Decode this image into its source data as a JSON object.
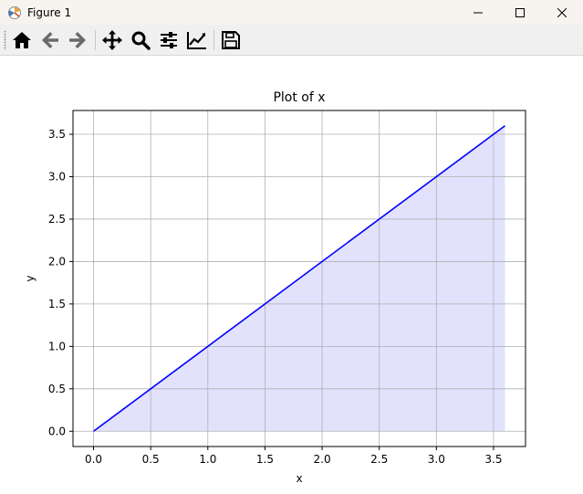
{
  "window": {
    "title": "Figure 1",
    "controls": [
      "minimize",
      "maximize",
      "close"
    ]
  },
  "toolbar": {
    "buttons": [
      {
        "name": "home-button",
        "icon": "home-icon"
      },
      {
        "name": "back-button",
        "icon": "arrow-left-icon"
      },
      {
        "name": "forward-button",
        "icon": "arrow-right-icon"
      },
      {
        "name": "pan-button",
        "icon": "move-icon"
      },
      {
        "name": "zoom-button",
        "icon": "magnifier-icon"
      },
      {
        "name": "configure-subplots-button",
        "icon": "sliders-icon"
      },
      {
        "name": "edit-axis-button",
        "icon": "line-chart-icon"
      },
      {
        "name": "save-button",
        "icon": "floppy-disk-icon"
      }
    ]
  },
  "chart_data": {
    "type": "area",
    "title": "Plot of x",
    "xlabel": "x",
    "ylabel": "y",
    "x": [
      0.0,
      3.6
    ],
    "series": [
      {
        "values": [
          0.0,
          3.6
        ],
        "color": "#0000ff",
        "fill": "#e2e2fd"
      }
    ],
    "xticks": [
      "0.0",
      "0.5",
      "1.0",
      "1.5",
      "2.0",
      "2.5",
      "3.0",
      "3.5"
    ],
    "yticks": [
      "0.0",
      "0.5",
      "1.0",
      "1.5",
      "2.0",
      "2.5",
      "3.0",
      "3.5"
    ],
    "xlim": [
      -0.18,
      3.78
    ],
    "ylim": [
      -0.18,
      3.78
    ],
    "grid": true
  }
}
